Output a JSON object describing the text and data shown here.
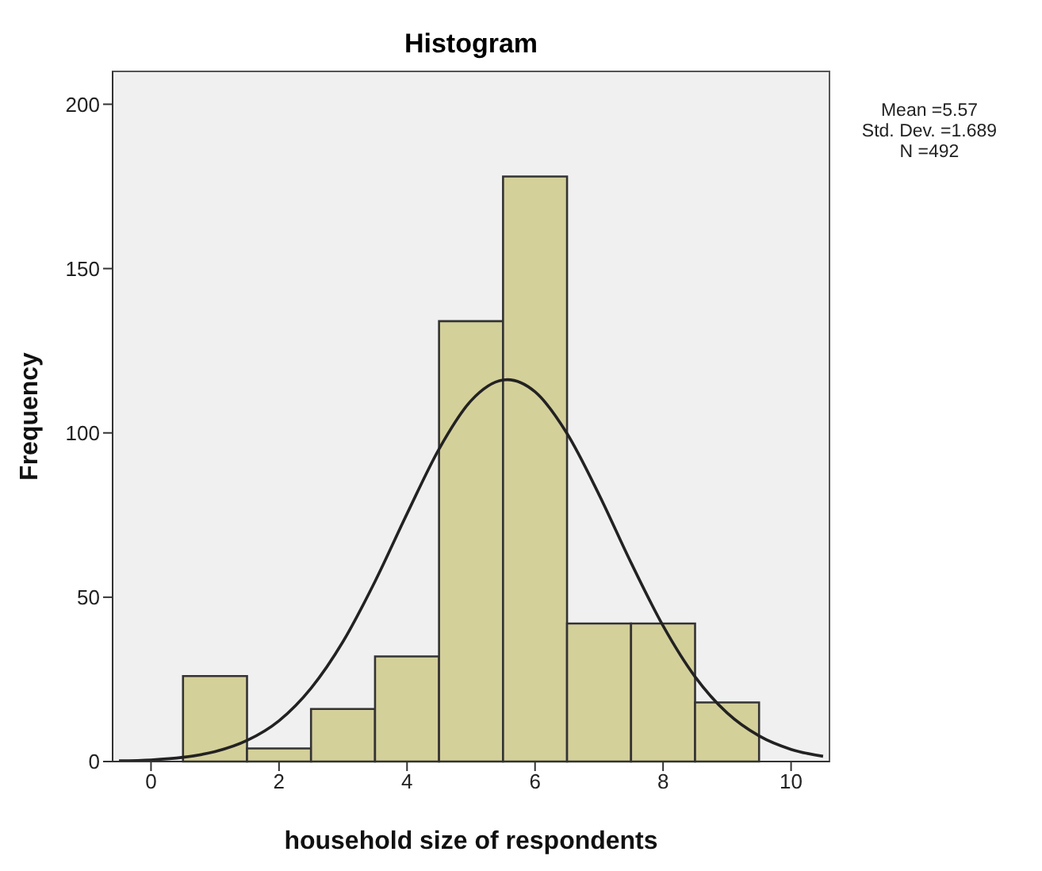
{
  "chart_data": {
    "type": "histogram",
    "title": "Histogram",
    "xlabel": "household size of respondents",
    "ylabel": "Frequency",
    "annotations": [
      "Mean =5.57",
      "Std. Dev. =1.689",
      "N =492"
    ],
    "xlim": [
      -0.6,
      10.6
    ],
    "xticks": [
      0,
      2,
      4,
      6,
      8,
      10
    ],
    "ylim": [
      0,
      210
    ],
    "yticks": [
      0,
      50,
      100,
      150,
      200
    ],
    "series": [
      {
        "color": "#d4d09a",
        "bins": [
          0.5,
          1.5,
          2.5,
          3.5,
          4.5,
          5.5,
          6.5,
          7.5,
          8.5,
          9.5
        ],
        "values": [
          26,
          4,
          16,
          32,
          134,
          178,
          42,
          42,
          18
        ]
      },
      {
        "type": "line",
        "color": "#222222",
        "x": [
          -0.5,
          0,
          0.5,
          1,
          1.5,
          2,
          2.5,
          3,
          3.5,
          4,
          4.5,
          5,
          5.5,
          5.57,
          6,
          6.5,
          7,
          7.5,
          8,
          8.5,
          9,
          9.5,
          10,
          10.5
        ],
        "values": [
          0.2,
          0.5,
          1.3,
          3,
          6.4,
          12.4,
          22.3,
          36.5,
          54.8,
          75.4,
          95.1,
          109.8,
          116.1,
          116.2,
          112.5,
          99.8,
          81.2,
          60.5,
          41.3,
          25.8,
          14.8,
          7.8,
          3.7,
          1.6
        ]
      }
    ]
  }
}
